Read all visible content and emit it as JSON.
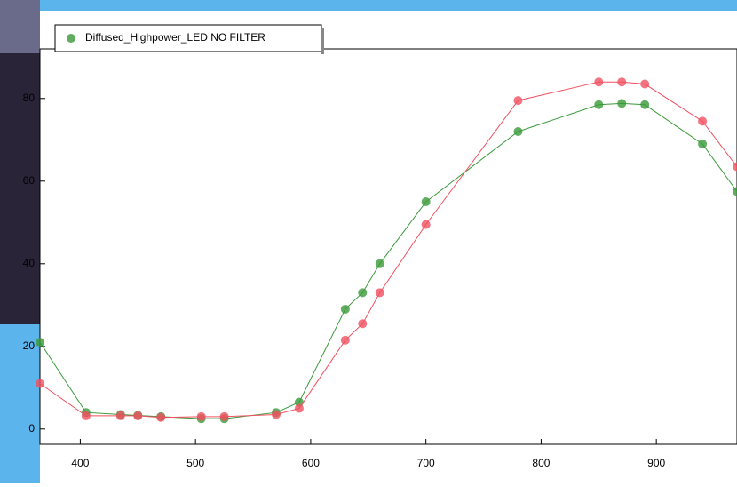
{
  "chart_data": {
    "type": "line",
    "x": [
      365,
      405,
      435,
      450,
      470,
      505,
      525,
      570,
      590,
      630,
      645,
      660,
      700,
      780,
      850,
      870,
      890,
      940,
      970
    ],
    "series": [
      {
        "name": "Diffused_Highpower_LED NO FILTER",
        "color": "#3a9a3a",
        "values": [
          21,
          4,
          3.5,
          3.3,
          3,
          2.5,
          2.5,
          4,
          6.5,
          29,
          33,
          40,
          55,
          72,
          78.5,
          78.8,
          78.5,
          69,
          57.5
        ]
      },
      {
        "color": "#f05060",
        "values": [
          11,
          3.2,
          3.2,
          3.2,
          2.8,
          3,
          3,
          3.5,
          5,
          21.5,
          25.5,
          33,
          49.5,
          79.5,
          84,
          84,
          83.5,
          74.5,
          63.5
        ]
      }
    ],
    "xlim": [
      365,
      970
    ],
    "ylim": [
      -3.7,
      92
    ],
    "xticks": [
      400,
      500,
      600,
      700,
      800,
      900
    ],
    "yticks": [
      0,
      20,
      40,
      60,
      80
    ],
    "legend": "top-left"
  }
}
